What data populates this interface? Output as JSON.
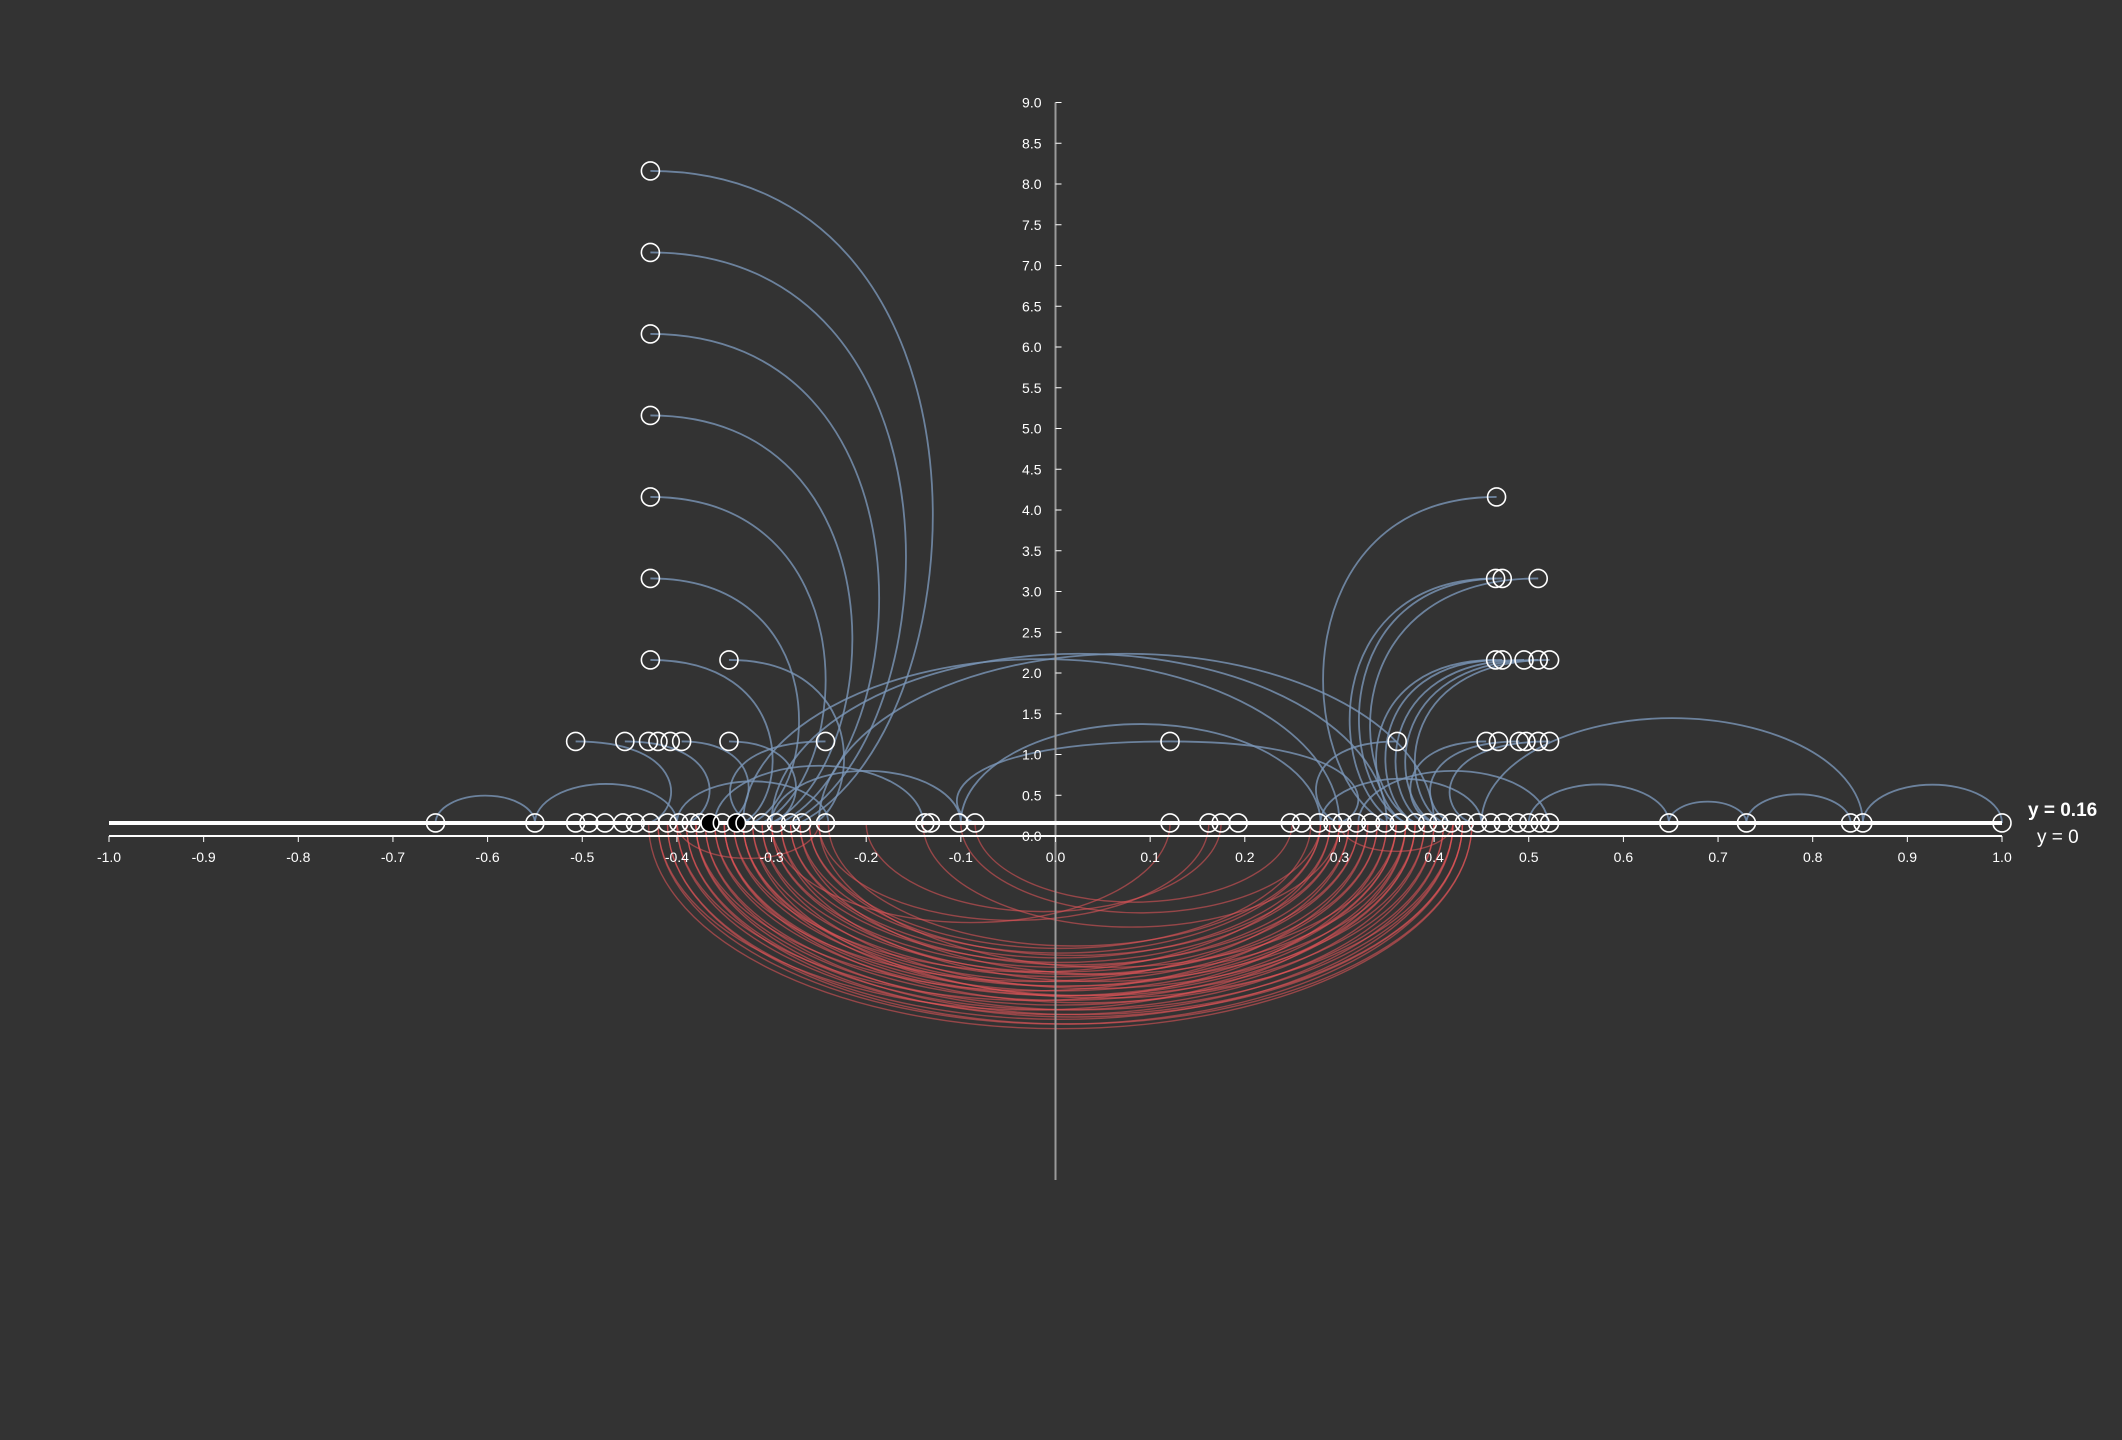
{
  "chart_data": {
    "type": "scatter",
    "title": "",
    "xlabel": "",
    "ylabel": "",
    "xlim": [
      -1.0,
      1.0
    ],
    "ylim": [
      0,
      9.0
    ],
    "x_ticks": [
      "-1.0",
      "-0.9",
      "-0.8",
      "-0.7",
      "-0.6",
      "-0.5",
      "-0.4",
      "-0.3",
      "-0.2",
      "-0.1",
      "0.0",
      "0.1",
      "0.2",
      "0.3",
      "0.4",
      "0.5",
      "0.6",
      "0.7",
      "0.8",
      "0.9",
      "1.0"
    ],
    "y_ticks": [
      "0.0",
      "0.5",
      "1.0",
      "1.5",
      "2.0",
      "2.5",
      "3.0",
      "3.5",
      "4.0",
      "4.5",
      "5.0",
      "5.5",
      "6.0",
      "6.5",
      "7.0",
      "7.5",
      "8.0",
      "8.5",
      "9.0"
    ],
    "reference_lines": [
      {
        "label": "y = 0.16",
        "y": 0.16,
        "bold": true
      },
      {
        "label": "y = 0",
        "y": 0,
        "bold": false
      }
    ],
    "colors": {
      "background": "#333333",
      "axis": "#ffffff",
      "node_stroke": "#ffffff",
      "upper_links": "#7b96b8",
      "lower_links": "#e8555a"
    },
    "points": [
      {
        "x": -0.655,
        "y": 0.16
      },
      {
        "x": -0.55,
        "y": 0.16
      },
      {
        "x": -0.507,
        "y": 0.16
      },
      {
        "x": -0.493,
        "y": 0.16
      },
      {
        "x": -0.476,
        "y": 0.16
      },
      {
        "x": -0.457,
        "y": 0.16
      },
      {
        "x": -0.444,
        "y": 0.16
      },
      {
        "x": -0.428,
        "y": 0.16
      },
      {
        "x": -0.41,
        "y": 0.16
      },
      {
        "x": -0.398,
        "y": 0.16
      },
      {
        "x": -0.385,
        "y": 0.16
      },
      {
        "x": -0.376,
        "y": 0.16
      },
      {
        "x": -0.365,
        "y": 0.16,
        "filled": true
      },
      {
        "x": -0.352,
        "y": 0.16
      },
      {
        "x": -0.337,
        "y": 0.16,
        "filled": true
      },
      {
        "x": -0.328,
        "y": 0.16
      },
      {
        "x": -0.31,
        "y": 0.16
      },
      {
        "x": -0.295,
        "y": 0.16
      },
      {
        "x": -0.28,
        "y": 0.16
      },
      {
        "x": -0.268,
        "y": 0.16
      },
      {
        "x": -0.243,
        "y": 0.16
      },
      {
        "x": -0.138,
        "y": 0.16
      },
      {
        "x": -0.132,
        "y": 0.16
      },
      {
        "x": -0.102,
        "y": 0.16
      },
      {
        "x": -0.085,
        "y": 0.16
      },
      {
        "x": 0.121,
        "y": 0.16
      },
      {
        "x": 0.162,
        "y": 0.16
      },
      {
        "x": 0.175,
        "y": 0.16
      },
      {
        "x": 0.193,
        "y": 0.16
      },
      {
        "x": 0.248,
        "y": 0.16
      },
      {
        "x": 0.26,
        "y": 0.16
      },
      {
        "x": 0.278,
        "y": 0.16
      },
      {
        "x": 0.293,
        "y": 0.16
      },
      {
        "x": 0.303,
        "y": 0.16
      },
      {
        "x": 0.318,
        "y": 0.16
      },
      {
        "x": 0.333,
        "y": 0.16
      },
      {
        "x": 0.348,
        "y": 0.16
      },
      {
        "x": 0.363,
        "y": 0.16
      },
      {
        "x": 0.38,
        "y": 0.16
      },
      {
        "x": 0.393,
        "y": 0.16
      },
      {
        "x": 0.405,
        "y": 0.16
      },
      {
        "x": 0.418,
        "y": 0.16
      },
      {
        "x": 0.432,
        "y": 0.16
      },
      {
        "x": 0.446,
        "y": 0.16
      },
      {
        "x": 0.46,
        "y": 0.16
      },
      {
        "x": 0.473,
        "y": 0.16
      },
      {
        "x": 0.488,
        "y": 0.16
      },
      {
        "x": 0.5,
        "y": 0.16
      },
      {
        "x": 0.512,
        "y": 0.16
      },
      {
        "x": 0.522,
        "y": 0.16
      },
      {
        "x": 0.648,
        "y": 0.16
      },
      {
        "x": 0.73,
        "y": 0.16
      },
      {
        "x": 0.84,
        "y": 0.16
      },
      {
        "x": 0.853,
        "y": 0.16
      },
      {
        "x": 1.0,
        "y": 0.16
      },
      {
        "x": -0.507,
        "y": 1.16
      },
      {
        "x": -0.455,
        "y": 1.16
      },
      {
        "x": -0.43,
        "y": 1.16
      },
      {
        "x": -0.42,
        "y": 1.16
      },
      {
        "x": -0.407,
        "y": 1.16
      },
      {
        "x": -0.395,
        "y": 1.16
      },
      {
        "x": -0.345,
        "y": 1.16
      },
      {
        "x": -0.243,
        "y": 1.16
      },
      {
        "x": 0.121,
        "y": 1.16
      },
      {
        "x": 0.361,
        "y": 1.16
      },
      {
        "x": 0.455,
        "y": 1.16
      },
      {
        "x": 0.468,
        "y": 1.16
      },
      {
        "x": 0.49,
        "y": 1.16
      },
      {
        "x": 0.497,
        "y": 1.16
      },
      {
        "x": 0.51,
        "y": 1.16
      },
      {
        "x": 0.522,
        "y": 1.16
      },
      {
        "x": -0.428,
        "y": 2.16
      },
      {
        "x": -0.345,
        "y": 2.16
      },
      {
        "x": 0.465,
        "y": 2.16
      },
      {
        "x": 0.472,
        "y": 2.16
      },
      {
        "x": 0.495,
        "y": 2.16
      },
      {
        "x": 0.51,
        "y": 2.16
      },
      {
        "x": 0.522,
        "y": 2.16
      },
      {
        "x": -0.428,
        "y": 3.16
      },
      {
        "x": 0.465,
        "y": 3.16
      },
      {
        "x": 0.472,
        "y": 3.16
      },
      {
        "x": 0.51,
        "y": 3.16
      },
      {
        "x": -0.428,
        "y": 4.16
      },
      {
        "x": 0.466,
        "y": 4.16
      },
      {
        "x": -0.428,
        "y": 5.16
      },
      {
        "x": -0.428,
        "y": 6.16
      },
      {
        "x": -0.428,
        "y": 7.16
      },
      {
        "x": -0.428,
        "y": 8.16
      }
    ],
    "upper_links": [
      {
        "x1": -0.428,
        "y1": 8.16,
        "x2": -0.27,
        "y2": 0.16
      },
      {
        "x1": -0.428,
        "y1": 7.16,
        "x2": -0.28,
        "y2": 0.16
      },
      {
        "x1": -0.428,
        "y1": 6.16,
        "x2": -0.29,
        "y2": 0.16
      },
      {
        "x1": -0.428,
        "y1": 5.16,
        "x2": -0.3,
        "y2": 0.16
      },
      {
        "x1": -0.428,
        "y1": 4.16,
        "x2": -0.31,
        "y2": 0.16
      },
      {
        "x1": -0.428,
        "y1": 3.16,
        "x2": -0.32,
        "y2": 0.16
      },
      {
        "x1": -0.428,
        "y1": 2.16,
        "x2": -0.33,
        "y2": 0.16
      },
      {
        "x1": -0.345,
        "y1": 2.16,
        "x2": -0.255,
        "y2": 0.16
      },
      {
        "x1": -0.243,
        "y1": 1.16,
        "x2": -0.32,
        "y2": 0.16
      },
      {
        "x1": -0.507,
        "y1": 1.16,
        "x2": -0.43,
        "y2": 0.16
      },
      {
        "x1": -0.455,
        "y1": 1.16,
        "x2": -0.39,
        "y2": 0.16
      },
      {
        "x1": -0.395,
        "y1": 1.16,
        "x2": -0.35,
        "y2": 0.16
      },
      {
        "x1": -0.345,
        "y1": 1.16,
        "x2": -0.3,
        "y2": 0.16
      },
      {
        "x1": 0.466,
        "y1": 4.16,
        "x2": 0.35,
        "y2": 0.16
      },
      {
        "x1": 0.465,
        "y1": 3.16,
        "x2": 0.36,
        "y2": 0.16
      },
      {
        "x1": 0.472,
        "y1": 3.16,
        "x2": 0.37,
        "y2": 0.16
      },
      {
        "x1": 0.51,
        "y1": 3.16,
        "x2": 0.38,
        "y2": 0.16
      },
      {
        "x1": 0.465,
        "y1": 2.16,
        "x2": 0.37,
        "y2": 0.16
      },
      {
        "x1": 0.472,
        "y1": 2.16,
        "x2": 0.38,
        "y2": 0.16
      },
      {
        "x1": 0.495,
        "y1": 2.16,
        "x2": 0.39,
        "y2": 0.16
      },
      {
        "x1": 0.51,
        "y1": 2.16,
        "x2": 0.4,
        "y2": 0.16
      },
      {
        "x1": 0.522,
        "y1": 2.16,
        "x2": 0.41,
        "y2": 0.16
      },
      {
        "x1": 0.361,
        "y1": 1.16,
        "x2": 0.3,
        "y2": 0.16
      },
      {
        "x1": 0.455,
        "y1": 1.16,
        "x2": 0.4,
        "y2": 0.16
      },
      {
        "x1": 0.49,
        "y1": 1.16,
        "x2": 0.42,
        "y2": 0.16
      },
      {
        "x1": 0.522,
        "y1": 1.16,
        "x2": 0.44,
        "y2": 0.16
      },
      {
        "x1": 0.121,
        "y1": 1.16,
        "x2": -0.085,
        "y2": 0.16
      },
      {
        "x1": 0.121,
        "y1": 1.16,
        "x2": 0.3,
        "y2": 0.16
      },
      {
        "x1": -0.33,
        "y1": 0.16,
        "x2": 0.3,
        "y2": 0.16
      },
      {
        "x1": -0.3,
        "y1": 0.16,
        "x2": 0.35,
        "y2": 0.16
      },
      {
        "x1": -0.25,
        "y1": 0.16,
        "x2": 0.4,
        "y2": 0.16
      },
      {
        "x1": -0.1,
        "y1": 0.16,
        "x2": 0.28,
        "y2": 0.16
      },
      {
        "x1": -0.655,
        "y1": 0.16,
        "x2": -0.55,
        "y2": 0.16
      },
      {
        "x1": -0.55,
        "y1": 0.16,
        "x2": -0.4,
        "y2": 0.16
      },
      {
        "x1": -0.4,
        "y1": 0.16,
        "x2": -0.24,
        "y2": 0.16
      },
      {
        "x1": -0.36,
        "y1": 0.16,
        "x2": -0.14,
        "y2": 0.16
      },
      {
        "x1": -0.3,
        "y1": 0.16,
        "x2": -0.1,
        "y2": 0.16
      },
      {
        "x1": 0.5,
        "y1": 0.16,
        "x2": 0.648,
        "y2": 0.16
      },
      {
        "x1": 0.648,
        "y1": 0.16,
        "x2": 0.73,
        "y2": 0.16
      },
      {
        "x1": 0.73,
        "y1": 0.16,
        "x2": 0.84,
        "y2": 0.16
      },
      {
        "x1": 0.853,
        "y1": 0.16,
        "x2": 1.0,
        "y2": 0.16
      },
      {
        "x1": 0.45,
        "y1": 0.16,
        "x2": 0.853,
        "y2": 0.16
      },
      {
        "x1": 0.32,
        "y1": 0.16,
        "x2": 0.52,
        "y2": 0.16
      },
      {
        "x1": 0.28,
        "y1": 0.16,
        "x2": 0.45,
        "y2": 0.16
      }
    ],
    "lower_links": [
      {
        "x1": -0.43,
        "x2": 0.44
      },
      {
        "x1": -0.42,
        "x2": 0.43
      },
      {
        "x1": -0.41,
        "x2": 0.42
      },
      {
        "x1": -0.4,
        "x2": 0.41
      },
      {
        "x1": -0.39,
        "x2": 0.4
      },
      {
        "x1": -0.38,
        "x2": 0.39
      },
      {
        "x1": -0.37,
        "x2": 0.38
      },
      {
        "x1": -0.36,
        "x2": 0.37
      },
      {
        "x1": -0.35,
        "x2": 0.36
      },
      {
        "x1": -0.34,
        "x2": 0.35
      },
      {
        "x1": -0.33,
        "x2": 0.34
      },
      {
        "x1": -0.32,
        "x2": 0.33
      },
      {
        "x1": -0.31,
        "x2": 0.32
      },
      {
        "x1": -0.3,
        "x2": 0.31
      },
      {
        "x1": -0.29,
        "x2": 0.3
      },
      {
        "x1": -0.28,
        "x2": 0.29
      },
      {
        "x1": -0.27,
        "x2": 0.28
      },
      {
        "x1": -0.26,
        "x2": 0.27
      },
      {
        "x1": -0.42,
        "x2": 0.37
      },
      {
        "x1": -0.4,
        "x2": 0.35
      },
      {
        "x1": -0.38,
        "x2": 0.33
      },
      {
        "x1": -0.36,
        "x2": 0.31
      },
      {
        "x1": -0.34,
        "x2": 0.29
      },
      {
        "x1": -0.39,
        "x2": 0.43
      },
      {
        "x1": -0.37,
        "x2": 0.42
      },
      {
        "x1": -0.35,
        "x2": 0.41
      },
      {
        "x1": -0.33,
        "x2": 0.4
      },
      {
        "x1": -0.31,
        "x2": 0.39
      },
      {
        "x1": -0.29,
        "x2": 0.38
      },
      {
        "x1": -0.27,
        "x2": 0.37
      },
      {
        "x1": -0.25,
        "x2": 0.36
      },
      {
        "x1": -0.14,
        "x2": 0.3
      },
      {
        "x1": -0.1,
        "x2": 0.28
      },
      {
        "x1": -0.085,
        "x2": 0.25
      },
      {
        "x1": -0.3,
        "x2": 0.121
      },
      {
        "x1": -0.25,
        "x2": 0.162
      },
      {
        "x1": -0.2,
        "x2": 0.175
      },
      {
        "x1": -0.4,
        "x2": -0.25
      },
      {
        "x1": 0.3,
        "x2": 0.42
      },
      {
        "x1": -0.41,
        "x2": 0.44
      },
      {
        "x1": -0.38,
        "x2": 0.43
      },
      {
        "x1": -0.32,
        "x2": 0.42
      },
      {
        "x1": -0.35,
        "x2": 0.38
      },
      {
        "x1": -0.33,
        "x2": 0.36
      },
      {
        "x1": -0.3,
        "x2": 0.34
      },
      {
        "x1": -0.28,
        "x2": 0.32
      },
      {
        "x1": -0.26,
        "x2": 0.3
      },
      {
        "x1": -0.24,
        "x2": 0.28
      }
    ]
  }
}
